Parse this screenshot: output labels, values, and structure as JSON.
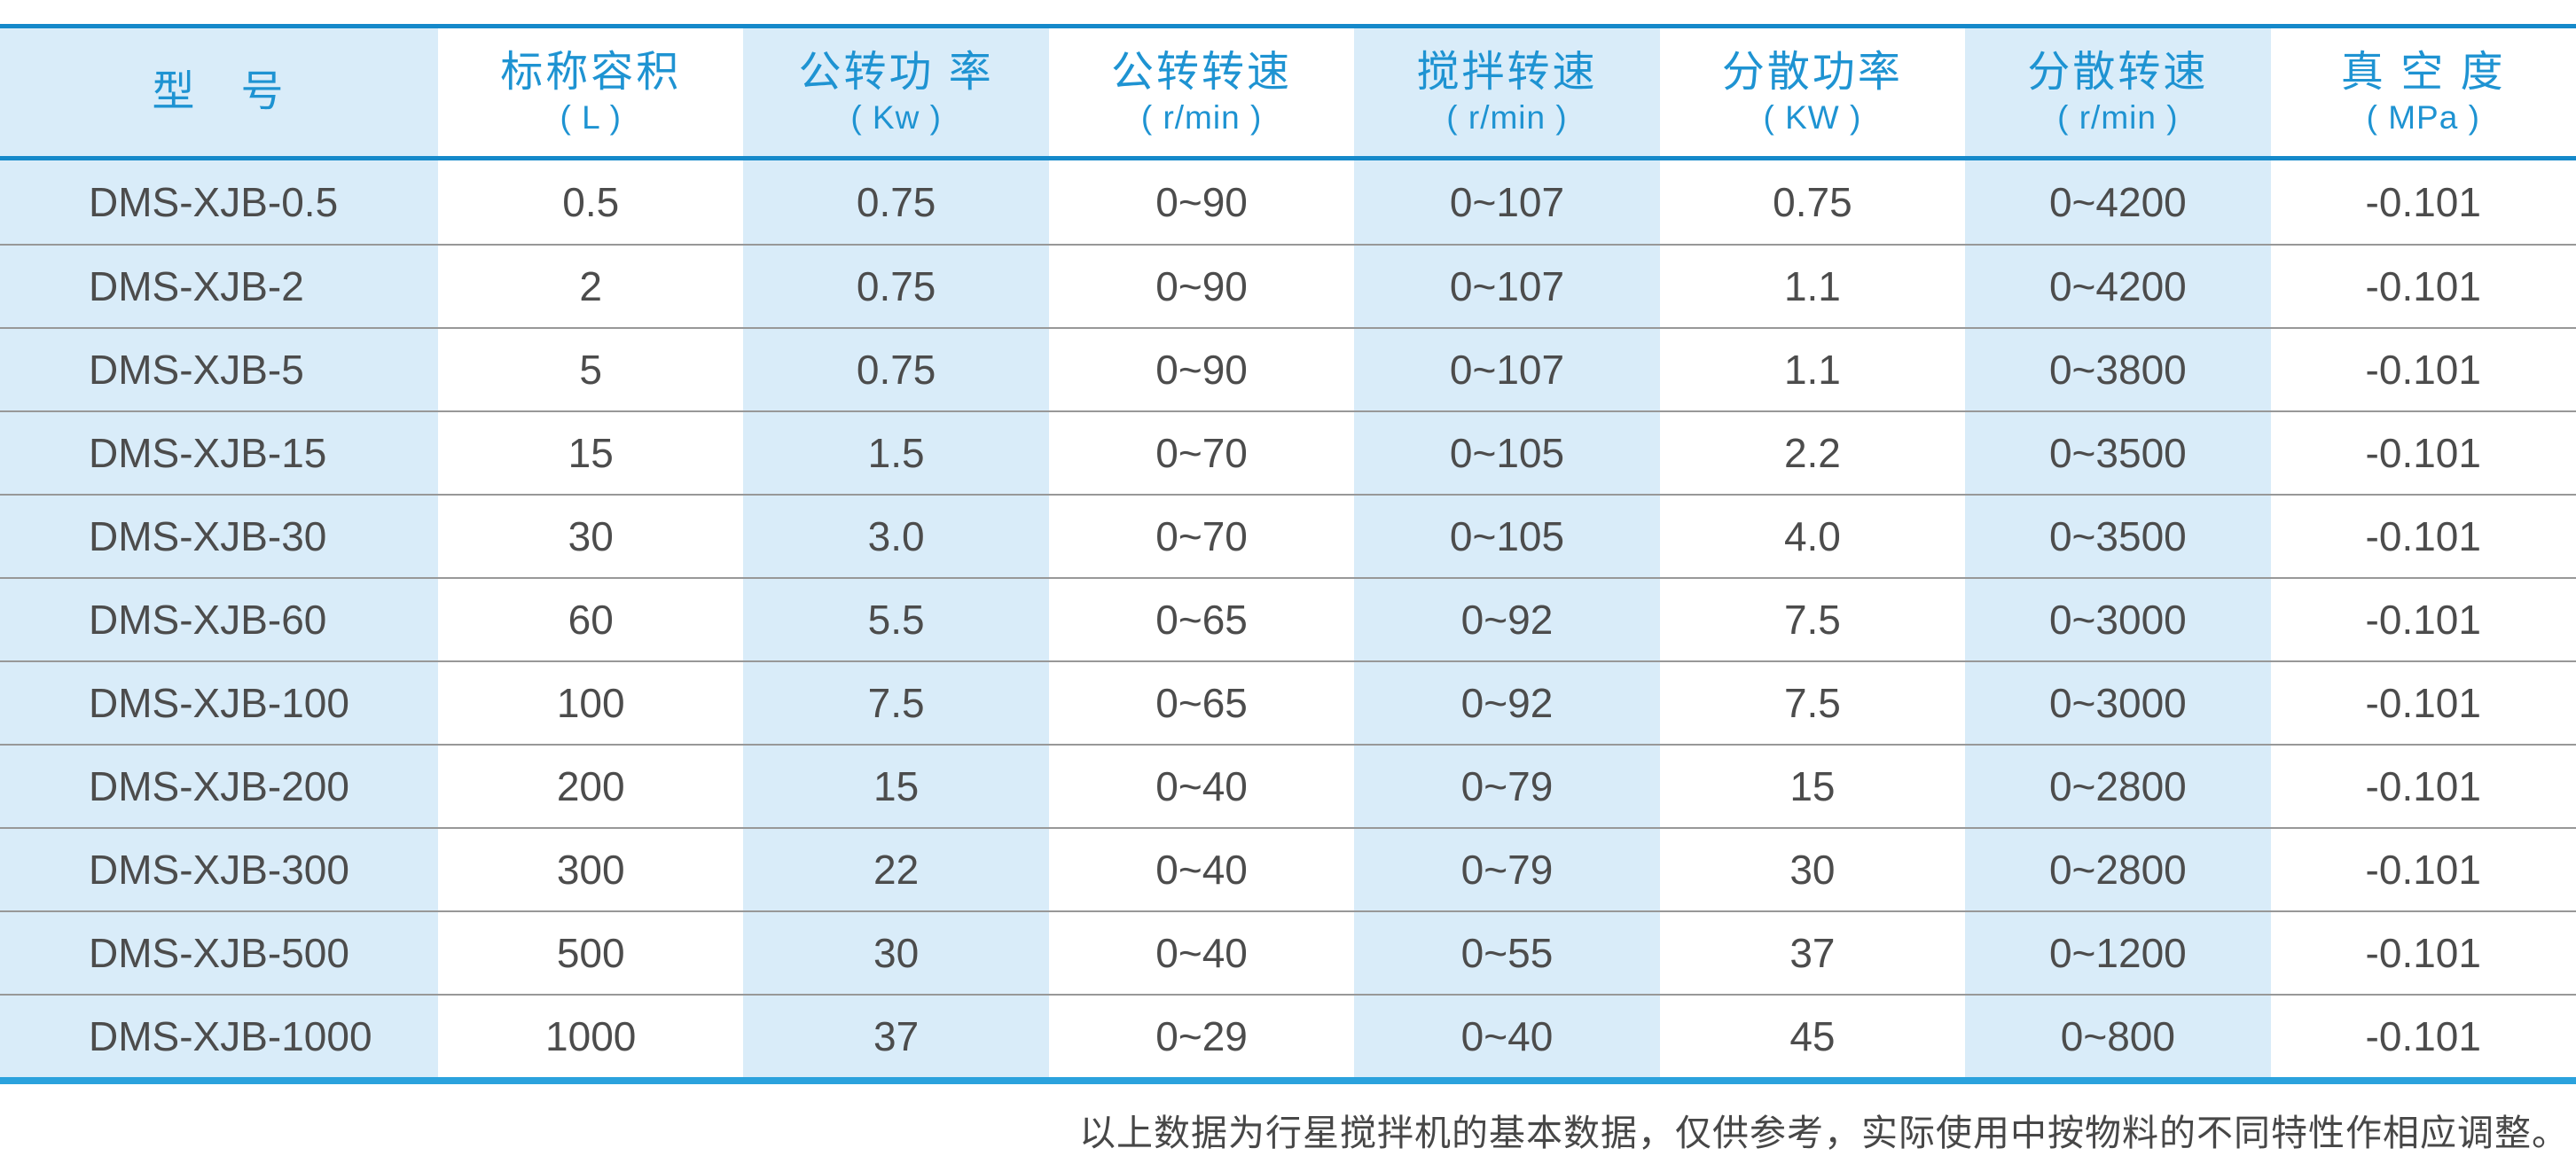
{
  "colors": {
    "header_text": "#1e93d2",
    "header_rule": "#1589ca",
    "bottom_rule": "#2ba2dd",
    "row_divider": "#989898",
    "stripe_background": "#d9ecf9",
    "data_text": "#4c4c4c",
    "footnote_text": "#474747"
  },
  "chart_data": {
    "type": "table",
    "title": "",
    "columns": [
      {
        "title": "型   号",
        "unit": ""
      },
      {
        "title": "标称容积",
        "unit": "( L )"
      },
      {
        "title": "公转功 率",
        "unit": "( Kw )"
      },
      {
        "title": "公转转速",
        "unit": "( r/min )"
      },
      {
        "title": "搅拌转速",
        "unit": "( r/min )"
      },
      {
        "title": "分散功率",
        "unit": "( KW )"
      },
      {
        "title": "分散转速",
        "unit": "( r/min )"
      },
      {
        "title": "真 空 度",
        "unit": "( MPa )"
      }
    ],
    "rows": [
      [
        "DMS-XJB-0.5",
        "0.5",
        "0.75",
        "0~90",
        "0~107",
        "0.75",
        "0~4200",
        "-0.101"
      ],
      [
        "DMS-XJB-2",
        "2",
        "0.75",
        "0~90",
        "0~107",
        "1.1",
        "0~4200",
        "-0.101"
      ],
      [
        "DMS-XJB-5",
        "5",
        "0.75",
        "0~90",
        "0~107",
        "1.1",
        "0~3800",
        "-0.101"
      ],
      [
        "DMS-XJB-15",
        "15",
        "1.5",
        "0~70",
        "0~105",
        "2.2",
        "0~3500",
        "-0.101"
      ],
      [
        "DMS-XJB-30",
        "30",
        "3.0",
        "0~70",
        "0~105",
        "4.0",
        "0~3500",
        "-0.101"
      ],
      [
        "DMS-XJB-60",
        "60",
        "5.5",
        "0~65",
        "0~92",
        "7.5",
        "0~3000",
        "-0.101"
      ],
      [
        "DMS-XJB-100",
        "100",
        "7.5",
        "0~65",
        "0~92",
        "7.5",
        "0~3000",
        "-0.101"
      ],
      [
        "DMS-XJB-200",
        "200",
        "15",
        "0~40",
        "0~79",
        "15",
        "0~2800",
        "-0.101"
      ],
      [
        "DMS-XJB-300",
        "300",
        "22",
        "0~40",
        "0~79",
        "30",
        "0~2800",
        "-0.101"
      ],
      [
        "DMS-XJB-500",
        "500",
        "30",
        "0~40",
        "0~55",
        "37",
        "0~1200",
        "-0.101"
      ],
      [
        "DMS-XJB-1000",
        "1000",
        "37",
        "0~29",
        "0~40",
        "45",
        "0~800",
        "-0.101"
      ]
    ],
    "footnote": "以上数据为行星搅拌机的基本数据，仅供参考，实际使用中按物料的不同特性作相应调整。"
  }
}
